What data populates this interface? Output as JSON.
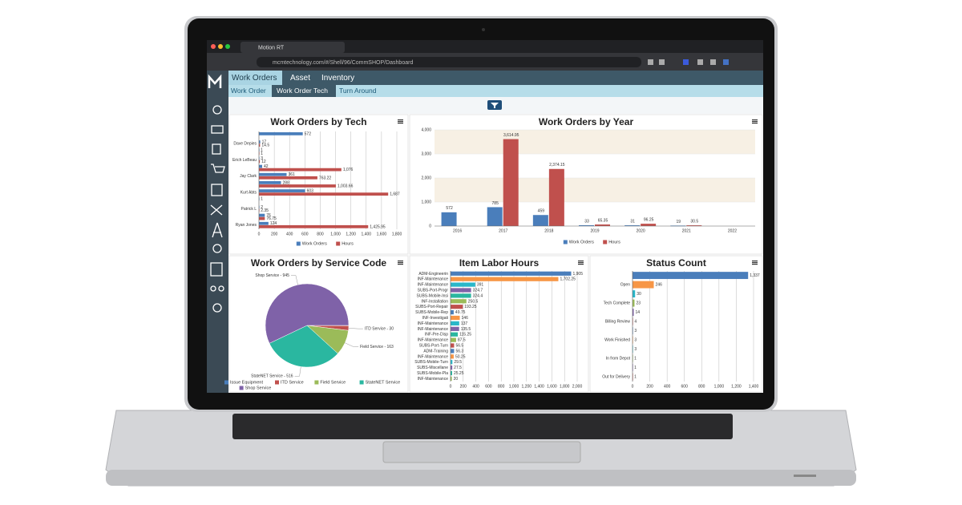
{
  "browser": {
    "tab_title": "Motion RT",
    "url": "mcmtechnology.com/#/Shell/96/CommSHOP/Dashboard"
  },
  "nav": {
    "tabs": [
      "Work Orders",
      "Asset",
      "Inventory"
    ],
    "subtabs": [
      "Work Order",
      "Work Order Tech",
      "Turn Around"
    ]
  },
  "chart_data": [
    {
      "type": "hbar",
      "title": "Work Orders by Tech",
      "categories": [
        null,
        "Dave Depies",
        null,
        "Erich LeBeau",
        null,
        "Jay Clark",
        null,
        "Kurt Abts",
        null,
        "Patrick L",
        null,
        "Ryan Jones"
      ],
      "series": [
        {
          "name": "Work Orders",
          "color": "#4a7ebb",
          "values": [
            572,
            17,
            1,
            3,
            42,
            361,
            288,
            603,
            1,
            2,
            76,
            124
          ]
        },
        {
          "name": "Hours",
          "color": "#c0504d",
          "values": [
            null,
            14.5,
            1,
            12,
            1076,
            763.22,
            1003.66,
            1687,
            null,
            2.35,
            76.75,
            1425.95
          ],
          "value_labels": [
            null,
            "14.5",
            "1",
            "12",
            "1,076",
            "763.22",
            "1,003.66",
            "1,687",
            null,
            "2.35",
            "76.75",
            "1,425.95"
          ]
        }
      ],
      "xlim": [
        0,
        1800
      ],
      "xticks": [
        0,
        200,
        400,
        600,
        800,
        {
          "value": 1000,
          "label": "1,000"
        },
        {
          "value": 1200,
          "label": "1,200"
        },
        {
          "value": 1400,
          "label": "1,400"
        },
        {
          "value": 1600,
          "label": "1,600"
        },
        {
          "value": 1800,
          "label": "1,800"
        }
      ],
      "grid": true,
      "legend": "bottom"
    },
    {
      "type": "vbar",
      "title": "Work Orders by Year",
      "categories": [
        "2016",
        "2017",
        "2018",
        "2019",
        "2020",
        "2021",
        "2022"
      ],
      "series": [
        {
          "name": "Work Orders",
          "color": "#4a7ebb",
          "values": [
            572,
            785,
            459,
            33,
            31,
            19,
            null
          ]
        },
        {
          "name": "Hours",
          "color": "#c0504d",
          "values": [
            null,
            3614.95,
            2374.15,
            65.35,
            96.25,
            30.5,
            null
          ],
          "value_labels": [
            null,
            "3,614.95",
            "2,374.15",
            "65.35",
            "96.25",
            "30.5",
            null
          ]
        }
      ],
      "ylim": [
        0,
        4000
      ],
      "yticks": [
        0,
        {
          "value": 1000,
          "label": "1,000"
        },
        {
          "value": 2000,
          "label": "2,000"
        },
        {
          "value": 3000,
          "label": "3,000"
        },
        {
          "value": 4000,
          "label": "4,000"
        }
      ],
      "grid": true,
      "legend": "bottom"
    },
    {
      "type": "pie",
      "title": "Work Orders by Service Code",
      "categories": [
        "Issue Equipment",
        "ITD Service",
        "Field Service",
        "StateNET Service",
        "Shop Service"
      ],
      "values": [
        2,
        30,
        163,
        516,
        945
      ],
      "value_labels": [
        null,
        "ITD Service - 30",
        "Field Service - 163",
        "StateNET Service - 516",
        "Shop Service - 945"
      ],
      "colors": [
        "#4a7ebb",
        "#c0504d",
        "#9bbb59",
        "#2ab7a0",
        "#7f62a8"
      ],
      "legend": "bottom"
    },
    {
      "type": "hbar",
      "title": "Item Labor Hours",
      "categories": [
        "ADM-Engineerin",
        "INF-Maintenance",
        "INF-Maintenance",
        "SUBS-Port-Progr",
        "SUBS-Mobile-Insi",
        "INF-Installation",
        "SUBS-Port-Repair",
        "SUBS-Mobile-Rep",
        "INF-Investigati",
        "INF-Maintenance",
        "INF-Maintenance",
        "INF-Pre-Disp",
        "INF-Maintenance",
        "SUBS-Port-Turn",
        "ADM-Training",
        "INF-Maintenance",
        "SUBS-Mobile-Turn",
        "SUBS-Miscellane",
        "SUBS-Mobile-Pla",
        "INF-Maintenance"
      ],
      "values": [
        1905,
        1702.25,
        391,
        324.7,
        324.4,
        250.5,
        193.25,
        49.75,
        146,
        137,
        135.5,
        115.25,
        87.5,
        56.5,
        56.3,
        50.25,
        29.5,
        27.5,
        25.25,
        20
      ],
      "value_labels": [
        "1,905",
        "1,702.25",
        "391",
        "324.7",
        "324.4",
        "250.5",
        "193.25",
        "49.75",
        "146",
        "137",
        "135.5",
        "115.25",
        "87.5",
        "56.5",
        "56.3",
        "50.25",
        "29.5",
        "27.5",
        "25.25",
        "20"
      ],
      "colors": [
        "#4a7ebb",
        "#f79646",
        "#2ab7c9",
        "#7f62a8",
        "#2ab7a0",
        "#9bbb59",
        "#c0504d",
        "#4a7ebb",
        "#f79646",
        "#2ab7c9",
        "#7f62a8",
        "#2ab7a0",
        "#9bbb59",
        "#c0504d",
        "#4a7ebb",
        "#f79646",
        "#2ab7c9",
        "#7f62a8",
        "#2ab7a0",
        "#9bbb59"
      ],
      "xlim": [
        0,
        2000
      ],
      "xticks": [
        0,
        200,
        400,
        600,
        800,
        {
          "value": 1000,
          "label": "1,000"
        },
        {
          "value": 1200,
          "label": "1,200"
        },
        {
          "value": 1400,
          "label": "1,400"
        },
        {
          "value": 1600,
          "label": "1,600"
        },
        {
          "value": 1800,
          "label": "1,800"
        },
        {
          "value": 2000,
          "label": "2,000"
        }
      ],
      "grid": true
    },
    {
      "type": "hbar",
      "title": "Status Count",
      "categories": [
        null,
        "Open",
        null,
        "Tech Complete",
        null,
        "Billing Review",
        null,
        "Work Finished",
        null,
        "In from Depot",
        null,
        "Out for Delivery"
      ],
      "values": [
        1337,
        246,
        30,
        23,
        14,
        4,
        3,
        3,
        3,
        1,
        1,
        1
      ],
      "value_labels": [
        "1,337",
        "246",
        "30",
        "23",
        "14",
        "4",
        "3",
        "3",
        "3",
        "1",
        "1",
        "1"
      ],
      "colors": [
        "#4a7ebb",
        "#f79646",
        "#2ab7c9",
        "#9bbb59",
        "#7f62a8",
        "#c0504d",
        "#4a7ebb",
        "#f79646",
        "#2ab7c9",
        "#9bbb59",
        "#7f62a8",
        "#c0504d"
      ],
      "xlim": [
        0,
        1400
      ],
      "xticks": [
        0,
        200,
        400,
        600,
        800,
        {
          "value": 1000,
          "label": "1,000"
        },
        {
          "value": 1200,
          "label": "1,200"
        },
        {
          "value": 1400,
          "label": "1,400"
        }
      ],
      "grid": true
    }
  ]
}
